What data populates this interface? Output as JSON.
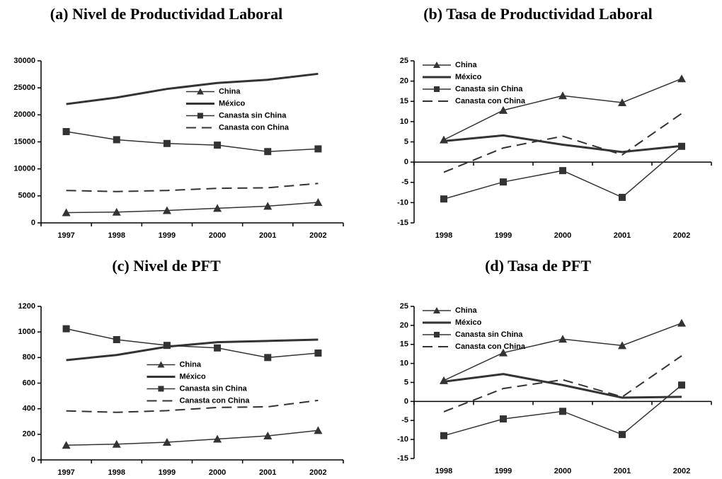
{
  "chart_data": [
    {
      "type": "line",
      "title": "(a) Nivel de Productividad Laboral",
      "categories": [
        "1997",
        "1998",
        "1999",
        "2000",
        "2001",
        "2002"
      ],
      "ylim": [
        0,
        30000
      ],
      "yticks": [
        0,
        5000,
        10000,
        15000,
        20000,
        25000,
        30000
      ],
      "legend": "upper center",
      "series": [
        {
          "name": "China",
          "color": "#333333",
          "marker": "triangle",
          "dash": false,
          "linewidth": 1.5,
          "values": [
            1900,
            2000,
            2300,
            2700,
            3100,
            3800
          ]
        },
        {
          "name": "México",
          "color": "#333333",
          "marker": "none",
          "dash": false,
          "linewidth": 3,
          "values": [
            22000,
            23200,
            24800,
            25900,
            26500,
            27600
          ]
        },
        {
          "name": "Canasta sin China",
          "color": "#333333",
          "marker": "square",
          "dash": false,
          "linewidth": 1.5,
          "values": [
            16900,
            15400,
            14700,
            14400,
            13200,
            13700
          ]
        },
        {
          "name": "Canasta con China",
          "color": "#333333",
          "marker": "none",
          "dash": true,
          "linewidth": 2,
          "values": [
            6000,
            5800,
            6000,
            6400,
            6500,
            7300
          ]
        }
      ]
    },
    {
      "type": "line",
      "title": "(b) Tasa de Productividad Laboral",
      "categories": [
        "1998",
        "1999",
        "2000",
        "2001",
        "2002"
      ],
      "ylim": [
        -15,
        25
      ],
      "yticks": [
        -15,
        -10,
        -5,
        0,
        5,
        10,
        15,
        20,
        25
      ],
      "legend": "upper left",
      "series": [
        {
          "name": "China",
          "color": "#333333",
          "marker": "triangle",
          "dash": false,
          "linewidth": 1.5,
          "values": [
            5.5,
            12.8,
            16.4,
            14.7,
            20.6
          ]
        },
        {
          "name": "México",
          "color": "#333333",
          "marker": "none",
          "dash": false,
          "linewidth": 3,
          "values": [
            5.2,
            6.6,
            4.3,
            2.5,
            4.0
          ]
        },
        {
          "name": "Canasta sin China",
          "color": "#333333",
          "marker": "square",
          "dash": false,
          "linewidth": 1.5,
          "values": [
            -9.1,
            -4.9,
            -2.1,
            -8.7,
            3.9
          ]
        },
        {
          "name": "Canasta con China",
          "color": "#333333",
          "marker": "none",
          "dash": true,
          "linewidth": 2,
          "values": [
            -2.5,
            3.5,
            6.4,
            1.8,
            12.0
          ]
        }
      ]
    },
    {
      "type": "line",
      "title": "(c) Nivel de PFT",
      "categories": [
        "1997",
        "1998",
        "1999",
        "2000",
        "2001",
        "2002"
      ],
      "ylim": [
        0,
        1200
      ],
      "yticks": [
        0,
        200,
        400,
        600,
        800,
        1000,
        1200
      ],
      "legend": "center",
      "series": [
        {
          "name": "China",
          "color": "#333333",
          "marker": "triangle",
          "dash": false,
          "linewidth": 1.5,
          "values": [
            115,
            123,
            138,
            163,
            188,
            230
          ]
        },
        {
          "name": "México",
          "color": "#333333",
          "marker": "none",
          "dash": false,
          "linewidth": 3,
          "values": [
            780,
            820,
            885,
            920,
            930,
            940
          ]
        },
        {
          "name": "Canasta sin China",
          "color": "#333333",
          "marker": "square",
          "dash": false,
          "linewidth": 1.5,
          "values": [
            1025,
            940,
            895,
            875,
            800,
            835
          ]
        },
        {
          "name": "Canasta con China",
          "color": "#333333",
          "marker": "none",
          "dash": true,
          "linewidth": 2,
          "values": [
            383,
            372,
            385,
            410,
            415,
            465
          ]
        }
      ]
    },
    {
      "type": "line",
      "title": "(d) Tasa de PFT",
      "categories": [
        "1998",
        "1999",
        "2000",
        "2001",
        "2002"
      ],
      "ylim": [
        -15,
        25
      ],
      "yticks": [
        -15,
        -10,
        -5,
        0,
        5,
        10,
        15,
        20,
        25
      ],
      "legend": "upper left",
      "series": [
        {
          "name": "China",
          "color": "#333333",
          "marker": "triangle",
          "dash": false,
          "linewidth": 1.5,
          "values": [
            5.5,
            12.8,
            16.4,
            14.7,
            20.6
          ]
        },
        {
          "name": "México",
          "color": "#333333",
          "marker": "none",
          "dash": false,
          "linewidth": 3,
          "values": [
            5.2,
            7.2,
            4.3,
            1.0,
            1.2
          ]
        },
        {
          "name": "Canasta sin China",
          "color": "#333333",
          "marker": "square",
          "dash": false,
          "linewidth": 1.5,
          "values": [
            -9.0,
            -4.6,
            -2.6,
            -8.7,
            4.3
          ]
        },
        {
          "name": "Canasta con China",
          "color": "#333333",
          "marker": "none",
          "dash": true,
          "linewidth": 2,
          "values": [
            -2.7,
            3.4,
            5.7,
            1.2,
            12.0
          ]
        }
      ]
    }
  ]
}
